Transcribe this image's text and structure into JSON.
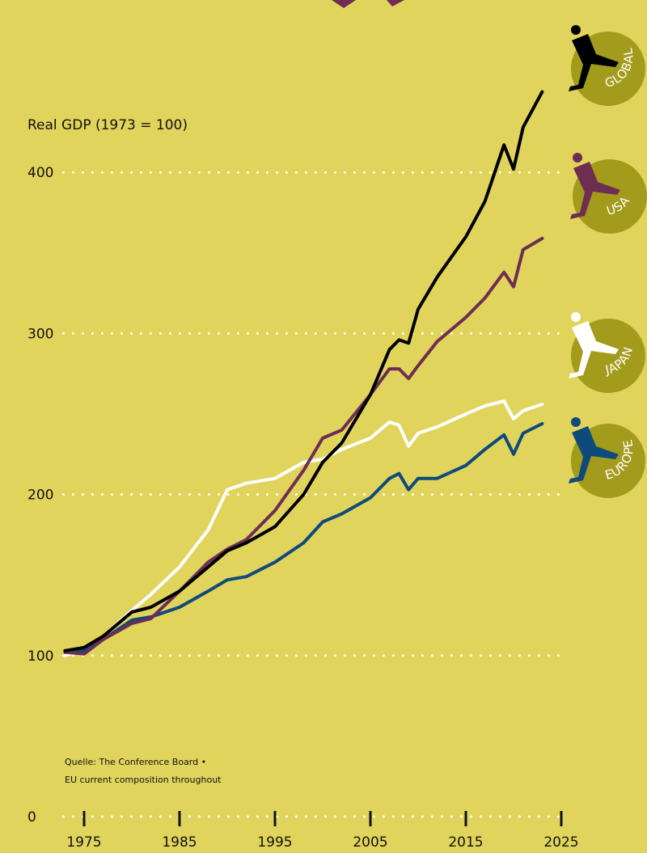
{
  "chart_data": {
    "type": "line",
    "y_label": "Real GDP (1973 = 100)",
    "source": [
      "Quelle: The Conference Board •",
      "EU current composition throughout"
    ],
    "x": [
      1973,
      1975,
      1977,
      1980,
      1982,
      1985,
      1988,
      1990,
      1992,
      1995,
      1998,
      2000,
      2002,
      2005,
      2007,
      2008,
      2009,
      2010,
      2012,
      2015,
      2017,
      2019,
      2020,
      2021,
      2023
    ],
    "series": [
      {
        "name": "GLOBAL",
        "color": "#000000",
        "values": [
          103,
          105,
          112,
          127,
          130,
          140,
          155,
          165,
          170,
          180,
          200,
          220,
          232,
          262,
          290,
          296,
          294,
          315,
          335,
          360,
          382,
          417,
          402,
          428,
          450
        ]
      },
      {
        "name": "USA",
        "color": "#6e2d52",
        "values": [
          102,
          101,
          110,
          120,
          123,
          140,
          158,
          166,
          172,
          190,
          215,
          235,
          240,
          262,
          278,
          278,
          272,
          280,
          295,
          310,
          322,
          338,
          329,
          352,
          359
        ]
      },
      {
        "name": "JAPAN",
        "color": "#ffffff",
        "values": [
          100,
          104,
          112,
          128,
          138,
          155,
          178,
          203,
          207,
          210,
          220,
          222,
          228,
          235,
          245,
          243,
          230,
          238,
          242,
          250,
          255,
          258,
          247,
          252,
          256
        ]
      },
      {
        "name": "EUROPE",
        "color": "#0f4a7c",
        "values": [
          102,
          103,
          110,
          122,
          124,
          130,
          140,
          147,
          149,
          158,
          170,
          183,
          188,
          198,
          210,
          213,
          203,
          210,
          210,
          218,
          228,
          237,
          225,
          238,
          244
        ]
      }
    ],
    "xlim": [
      1970,
      2030
    ],
    "xticks": [
      1975,
      1985,
      1995,
      2005,
      2015,
      2025
    ],
    "ylim": [
      0,
      500
    ],
    "yticks": [
      0,
      100,
      200,
      300,
      400
    ],
    "grid": true
  }
}
